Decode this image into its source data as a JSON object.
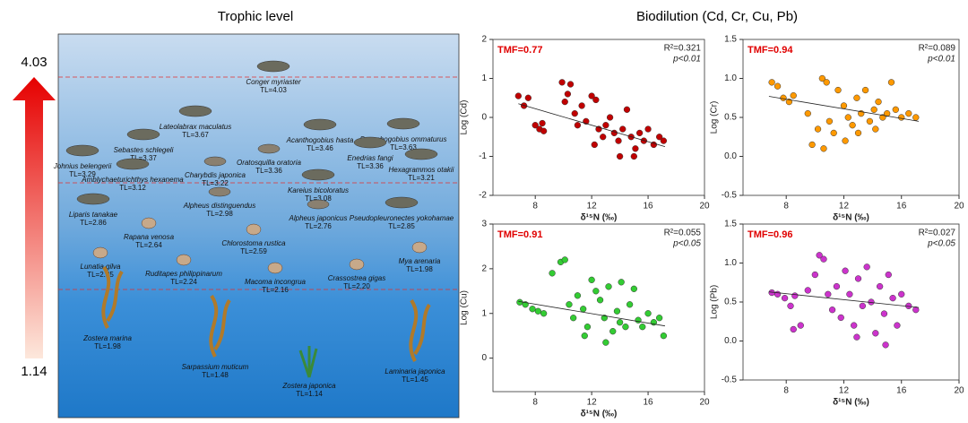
{
  "food_web": {
    "title": "Trophic level",
    "scale_max": "4.03",
    "scale_min": "1.14",
    "species": [
      {
        "name": "Conger myriaster",
        "tl": "TL=4.03"
      },
      {
        "name": "Lateolabrax maculatus",
        "tl": "TL=3.67"
      },
      {
        "name": "Synechogobius ommaturus",
        "tl": "TL=3.63"
      },
      {
        "name": "Acanthogobius hasta",
        "tl": "TL=3.46"
      },
      {
        "name": "Sebastes schlegeli",
        "tl": "TL=3.37"
      },
      {
        "name": "Johnius belengerii",
        "tl": "TL=3.29"
      },
      {
        "name": "Oratosquilla oratoria",
        "tl": "TL=3.36"
      },
      {
        "name": "Enedrias fangi",
        "tl": "TL=3.36"
      },
      {
        "name": "Charybdis japonica",
        "tl": "TL=3.22"
      },
      {
        "name": "Hexagrammos otakii",
        "tl": "TL=3.21"
      },
      {
        "name": "Amblychaeturichthys hexanema",
        "tl": "TL=3.12"
      },
      {
        "name": "Kareius bicoloratus",
        "tl": "TL=3.08"
      },
      {
        "name": "Alpheus distinguendus",
        "tl": "TL=2.98"
      },
      {
        "name": "Liparis tanakae",
        "tl": "TL=2.86"
      },
      {
        "name": "Alpheus japonicus",
        "tl": "TL=2.76"
      },
      {
        "name": "Pseudopleuronectes yokohamae",
        "tl": "TL=2.85"
      },
      {
        "name": "Rapana venosa",
        "tl": "TL=2.64"
      },
      {
        "name": "Chlorostoma rustica",
        "tl": "TL=2.59"
      },
      {
        "name": "Mya arenaria",
        "tl": "TL=1.98"
      },
      {
        "name": "Lunatia gilva",
        "tl": "TL=2.35"
      },
      {
        "name": "Ruditapes philippinarum",
        "tl": "TL=2.24"
      },
      {
        "name": "Crassostrea gigas",
        "tl": "TL=2.20"
      },
      {
        "name": "Macoma incongrua",
        "tl": "TL=2.16"
      },
      {
        "name": "Zostera marina",
        "tl": "TL=1.98"
      },
      {
        "name": "Sarpassium muticum",
        "tl": "TL=1.48"
      },
      {
        "name": "Zostera japonica",
        "tl": "TL=1.14"
      },
      {
        "name": "Laminaria japonica",
        "tl": "TL=1.45"
      }
    ]
  },
  "figure_title": "Biodilution (Cd, Cr, Cu, Pb)",
  "chart_data": [
    {
      "type": "scatter",
      "annotation": "TMF=0.77",
      "r2": "R²=0.321",
      "p": "p<0.01",
      "x_label": "δ¹⁵N (‰)",
      "y_label": "Log (Cd)",
      "color": "#c00000",
      "x": [
        6.8,
        7.2,
        7.5,
        8.0,
        8.3,
        8.5,
        8.6,
        9.9,
        10.1,
        10.3,
        10.5,
        10.8,
        11.0,
        11.3,
        11.6,
        12.0,
        12.3,
        12.5,
        12.8,
        13.0,
        13.3,
        13.6,
        13.9,
        14.2,
        14.5,
        14.8,
        15.1,
        15.4,
        15.7,
        16.0,
        16.4,
        16.8,
        17.1,
        14.0,
        15.0,
        12.2
      ],
      "values": [
        0.55,
        0.3,
        0.5,
        -0.2,
        -0.3,
        -0.15,
        -0.35,
        0.9,
        0.4,
        0.6,
        0.85,
        0.1,
        -0.2,
        0.3,
        -0.1,
        0.55,
        0.45,
        -0.3,
        -0.5,
        -0.2,
        0.0,
        -0.4,
        -0.6,
        -0.3,
        0.2,
        -0.5,
        -0.8,
        -0.4,
        -0.6,
        -0.3,
        -0.7,
        -0.5,
        -0.6,
        -1.0,
        -1.0,
        -0.7
      ],
      "trendline": {
        "x": [
          6.8,
          17.2
        ],
        "y": [
          0.35,
          -0.75
        ]
      },
      "xlim": [
        5,
        20
      ],
      "xticks": [
        8,
        12,
        16,
        20
      ],
      "ylim": [
        -2,
        2
      ],
      "yticks": [
        -2,
        -1,
        0,
        1,
        2
      ]
    },
    {
      "type": "scatter",
      "annotation": "TMF=0.94",
      "r2": "R²=0.089",
      "p": "p<0.01",
      "x_label": "δ¹⁵N (‰)",
      "y_label": "Log (Cr)",
      "color": "#ff9900",
      "x": [
        7.0,
        7.4,
        7.8,
        8.2,
        8.5,
        9.5,
        10.2,
        10.5,
        10.8,
        11.0,
        11.3,
        11.6,
        12.0,
        12.3,
        12.6,
        12.9,
        13.2,
        13.5,
        13.8,
        14.1,
        14.4,
        14.7,
        15.0,
        15.3,
        15.6,
        16.0,
        16.5,
        17.0,
        12.1,
        13.0,
        10.6,
        14.2,
        9.8
      ],
      "values": [
        0.95,
        0.9,
        0.75,
        0.7,
        0.78,
        0.55,
        0.35,
        1.0,
        0.95,
        0.45,
        0.3,
        0.85,
        0.65,
        0.5,
        0.4,
        0.75,
        0.55,
        0.85,
        0.45,
        0.6,
        0.7,
        0.5,
        0.55,
        0.95,
        0.6,
        0.5,
        0.55,
        0.5,
        0.2,
        0.3,
        0.1,
        0.35,
        0.15
      ],
      "trendline": {
        "x": [
          6.8,
          17.2
        ],
        "y": [
          0.77,
          0.45
        ]
      },
      "xlim": [
        5,
        20
      ],
      "xticks": [
        8,
        12,
        16,
        20
      ],
      "ylim": [
        -0.5,
        1.5
      ],
      "yticks": [
        -0.5,
        {
          "value": 0,
          "label": "0.0"
        },
        0.5,
        {
          "value": 1,
          "label": "1.0"
        },
        1.5
      ]
    },
    {
      "type": "scatter",
      "annotation": "TMF=0.91",
      "r2": "R²=0.055",
      "p": "p<0.05",
      "x_label": "δ¹⁵N (‰)",
      "y_label": "Log (Cu)",
      "color": "#33cc33",
      "x": [
        6.9,
        7.3,
        7.8,
        8.2,
        8.6,
        9.2,
        9.8,
        10.1,
        10.4,
        10.7,
        11.0,
        11.4,
        11.7,
        12.0,
        12.3,
        12.6,
        12.9,
        13.2,
        13.5,
        13.8,
        14.1,
        14.4,
        14.7,
        15.0,
        15.3,
        15.6,
        16.0,
        16.4,
        16.8,
        17.1,
        11.5,
        13.0,
        14.0
      ],
      "values": [
        1.25,
        1.2,
        1.1,
        1.05,
        1.0,
        1.9,
        2.15,
        2.2,
        1.2,
        0.9,
        1.4,
        1.1,
        0.7,
        1.75,
        1.5,
        1.3,
        0.9,
        1.6,
        0.6,
        1.05,
        1.7,
        0.7,
        1.2,
        1.55,
        0.85,
        0.7,
        1.0,
        0.8,
        0.9,
        0.5,
        0.5,
        0.35,
        0.8
      ],
      "trendline": {
        "x": [
          6.8,
          17.2
        ],
        "y": [
          1.27,
          0.72
        ]
      },
      "xlim": [
        5,
        20
      ],
      "xticks": [
        8,
        12,
        16,
        20
      ],
      "ylim": [
        -0.75,
        3
      ],
      "yticks": [
        0,
        1,
        2,
        3
      ]
    },
    {
      "type": "scatter",
      "annotation": "TMF=0.96",
      "r2": "R²=0.027",
      "p": "p<0.05",
      "x_label": "δ¹⁵N (‰)",
      "y_label": "Log (Pb)",
      "color": "#cc33cc",
      "x": [
        7.0,
        7.4,
        7.9,
        8.3,
        8.6,
        9.0,
        9.5,
        10.0,
        10.3,
        10.6,
        10.9,
        11.2,
        11.5,
        11.8,
        12.1,
        12.4,
        12.7,
        13.0,
        13.3,
        13.6,
        13.9,
        14.2,
        14.5,
        14.8,
        15.1,
        15.4,
        15.7,
        16.0,
        16.5,
        17.0,
        14.9,
        12.9,
        8.5
      ],
      "values": [
        0.62,
        0.6,
        0.55,
        0.45,
        0.58,
        0.2,
        0.65,
        0.85,
        1.1,
        1.05,
        0.6,
        0.4,
        0.7,
        0.3,
        0.9,
        0.6,
        0.2,
        0.8,
        0.45,
        0.95,
        0.5,
        0.1,
        0.7,
        0.35,
        0.85,
        0.55,
        0.2,
        0.6,
        0.45,
        0.4,
        -0.05,
        0.05,
        0.15
      ],
      "trendline": {
        "x": [
          6.8,
          17.2
        ],
        "y": [
          0.63,
          0.43
        ]
      },
      "xlim": [
        5,
        20
      ],
      "xticks": [
        8,
        12,
        16,
        20
      ],
      "ylim": [
        -0.5,
        1.5
      ],
      "yticks": [
        -0.5,
        {
          "value": 0,
          "label": "0.0"
        },
        0.5,
        {
          "value": 1,
          "label": "1.0"
        },
        1.5
      ]
    }
  ]
}
